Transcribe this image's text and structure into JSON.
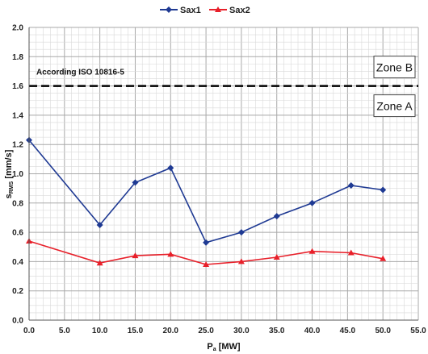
{
  "chart_data": {
    "type": "line",
    "x": [
      0.0,
      10.0,
      15.0,
      20.0,
      25.0,
      30.0,
      35.0,
      40.0,
      45.5,
      50.0
    ],
    "series": [
      {
        "name": "Sax1",
        "color": "#1f3a93",
        "marker": "diamond",
        "values": [
          1.23,
          0.65,
          0.94,
          1.04,
          0.53,
          0.6,
          0.71,
          0.8,
          0.92,
          0.89
        ]
      },
      {
        "name": "Sax2",
        "color": "#e8202a",
        "marker": "triangle",
        "values": [
          0.54,
          0.39,
          0.44,
          0.45,
          0.38,
          0.4,
          0.43,
          0.47,
          0.46,
          0.42
        ]
      }
    ],
    "xlabel": {
      "main": "P",
      "sub": "a",
      "unit": " [MW]"
    },
    "ylabel": {
      "main": "s",
      "sub": "RMS",
      "unit": " [mm/s]"
    },
    "xlim": [
      0,
      55
    ],
    "ylim": [
      0,
      2.0
    ],
    "xticks": [
      "0.0",
      "5.0",
      "10.0",
      "15.0",
      "20.0",
      "25.0",
      "30.0",
      "35.0",
      "40.0",
      "45.0",
      "50.0",
      "55.0"
    ],
    "yticks": [
      "0.0",
      "0.2",
      "0.4",
      "0.6",
      "0.8",
      "1.0",
      "1.2",
      "1.4",
      "1.6",
      "1.8",
      "2.0"
    ],
    "grid": true,
    "legend_position": "top-center",
    "threshold": {
      "value": 1.6,
      "label": "According ISO 10816-5",
      "style": "dashed",
      "color": "#000000"
    },
    "zones": [
      {
        "label": "Zone B",
        "side": "above"
      },
      {
        "label": "Zone A",
        "side": "below"
      }
    ]
  }
}
